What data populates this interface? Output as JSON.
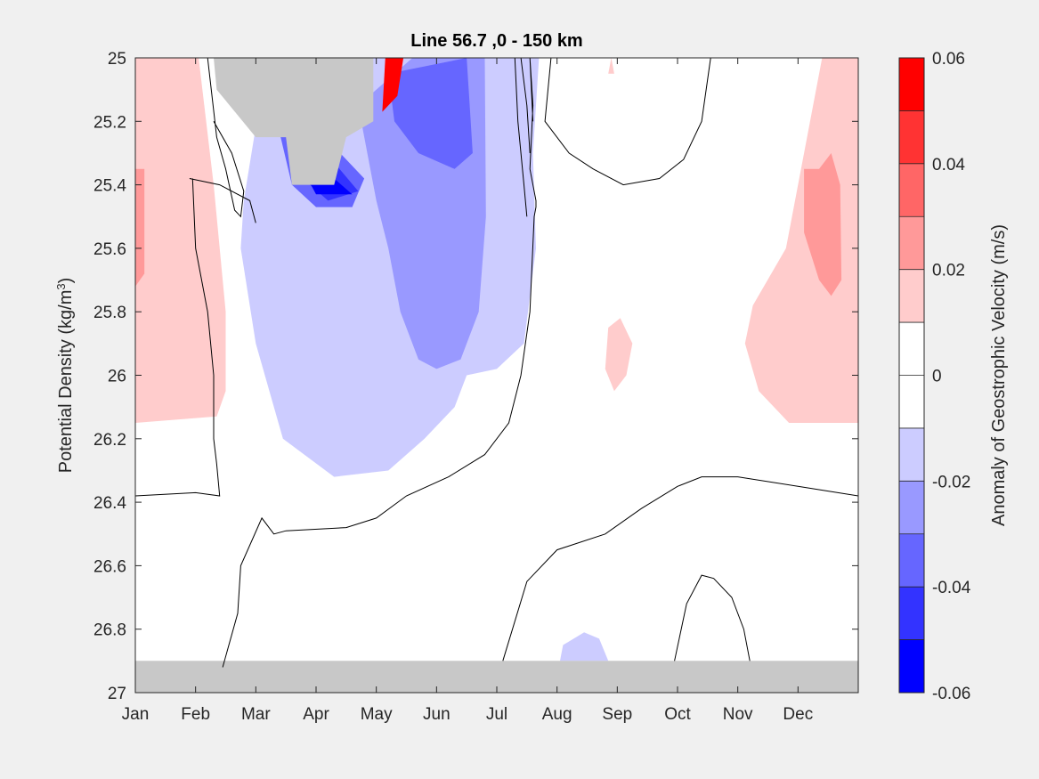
{
  "chart_data": {
    "type": "heatmap",
    "title": "Line 56.7 ,0 - 150 km",
    "xlabel": "",
    "ylabel": "Potential Density (kg/m^3)",
    "ylabel_parts": {
      "main": "Potential Density (kg/m",
      "sup": "3",
      "close": ")"
    },
    "x_ticks": [
      "Jan",
      "Feb",
      "Mar",
      "Apr",
      "May",
      "Jun",
      "Jul",
      "Aug",
      "Sep",
      "Oct",
      "Nov",
      "Dec"
    ],
    "y_ticks": [
      "25",
      "25.2",
      "25.4",
      "25.6",
      "25.8",
      "26",
      "26.2",
      "26.4",
      "26.6",
      "26.8",
      "27"
    ],
    "y_tick_values": [
      25,
      25.2,
      25.4,
      25.6,
      25.8,
      26,
      26.2,
      26.4,
      26.6,
      26.8,
      27
    ],
    "ylim": [
      25,
      27
    ],
    "xlim": [
      0,
      12
    ],
    "y_reversed": true,
    "grid": false,
    "colorbar": {
      "label": "Anomaly of Geostrophic Velocity (m/s)",
      "range": [
        -0.06,
        0.06
      ],
      "tick_labels": [
        "0.06",
        "0.04",
        "0.02",
        "0",
        "-0.02",
        "-0.04",
        "-0.06"
      ],
      "tick_values": [
        0.06,
        0.04,
        0.02,
        0,
        -0.02,
        -0.04,
        -0.06
      ],
      "levels": [
        0.06,
        0.05,
        0.04,
        0.03,
        0.02,
        0.01,
        0,
        -0.01,
        -0.02,
        -0.03,
        -0.04,
        -0.05,
        -0.06
      ],
      "colors": [
        "#ff0000",
        "#ff3333",
        "#ff6666",
        "#ff9999",
        "#ffcccc",
        "#ffffff",
        "#ffffff",
        "#ccccff",
        "#9999ff",
        "#6666ff",
        "#3333ff",
        "#0000ff"
      ]
    },
    "mask_color": "#c8c8c8",
    "anomaly_regions": [
      {
        "value": 0.015,
        "points": [
          [
            0,
            25
          ],
          [
            1.05,
            25
          ],
          [
            1.3,
            25.4
          ],
          [
            1.5,
            25.8
          ],
          [
            1.5,
            26.05
          ],
          [
            1.35,
            26.13
          ],
          [
            0,
            26.15
          ]
        ]
      },
      {
        "value": 0.025,
        "points": [
          [
            0,
            25.35
          ],
          [
            0.15,
            25.35
          ],
          [
            0.15,
            25.68
          ],
          [
            0,
            25.72
          ]
        ]
      },
      {
        "value": 0.015,
        "points": [
          [
            7.9,
            25.0
          ],
          [
            7.95,
            25.05
          ],
          [
            7.85,
            25.05
          ]
        ]
      },
      {
        "value": 0.015,
        "points": [
          [
            12,
            25
          ],
          [
            11.4,
            25
          ],
          [
            11.1,
            25.3
          ],
          [
            10.8,
            25.6
          ],
          [
            10.25,
            25.78
          ],
          [
            10.12,
            25.9
          ],
          [
            10.35,
            26.05
          ],
          [
            10.85,
            26.15
          ],
          [
            12,
            26.15
          ]
        ]
      },
      {
        "value": 0.025,
        "points": [
          [
            11.35,
            25.35
          ],
          [
            11.55,
            25.3
          ],
          [
            11.7,
            25.4
          ],
          [
            11.72,
            25.7
          ],
          [
            11.55,
            25.75
          ],
          [
            11.35,
            25.7
          ],
          [
            11.1,
            25.55
          ],
          [
            11.1,
            25.35
          ]
        ]
      },
      {
        "value": 0.015,
        "points": [
          [
            7.85,
            25.85
          ],
          [
            8.05,
            25.82
          ],
          [
            8.25,
            25.9
          ],
          [
            8.15,
            26.0
          ],
          [
            7.95,
            26.05
          ],
          [
            7.8,
            25.98
          ]
        ]
      },
      {
        "value": -0.015,
        "points": [
          [
            2.1,
            25.1
          ],
          [
            3.0,
            25.0
          ],
          [
            6.7,
            25.0
          ],
          [
            6.6,
            25.3
          ],
          [
            6.65,
            25.6
          ],
          [
            6.45,
            25.9
          ],
          [
            6.0,
            25.98
          ],
          [
            5.5,
            26.0
          ],
          [
            5.3,
            26.1
          ],
          [
            4.8,
            26.2
          ],
          [
            4.2,
            26.3
          ],
          [
            3.3,
            26.32
          ],
          [
            2.45,
            26.2
          ],
          [
            2.0,
            25.9
          ],
          [
            1.75,
            25.6
          ],
          [
            1.8,
            25.45
          ]
        ]
      },
      {
        "value": -0.025,
        "points": [
          [
            3.7,
            25.15
          ],
          [
            4.6,
            25.0
          ],
          [
            5.8,
            25.0
          ],
          [
            5.82,
            25.5
          ],
          [
            5.7,
            25.8
          ],
          [
            5.4,
            25.95
          ],
          [
            5.0,
            25.98
          ],
          [
            4.7,
            25.95
          ],
          [
            4.4,
            25.8
          ],
          [
            4.2,
            25.6
          ],
          [
            4.0,
            25.45
          ]
        ]
      },
      {
        "value": -0.035,
        "points": [
          [
            4.2,
            25.05
          ],
          [
            5.5,
            25.0
          ],
          [
            5.6,
            25.3
          ],
          [
            5.3,
            25.35
          ],
          [
            4.7,
            25.3
          ],
          [
            4.3,
            25.2
          ]
        ]
      },
      {
        "value": -0.035,
        "points": [
          [
            2.35,
            25.2
          ],
          [
            2.8,
            25.22
          ],
          [
            3.4,
            25.3
          ],
          [
            3.8,
            25.38
          ],
          [
            3.6,
            25.47
          ],
          [
            3.0,
            25.47
          ],
          [
            2.6,
            25.4
          ]
        ]
      },
      {
        "value": -0.045,
        "points": [
          [
            2.6,
            25.28
          ],
          [
            3.3,
            25.33
          ],
          [
            3.7,
            25.42
          ],
          [
            3.2,
            25.45
          ],
          [
            2.9,
            25.4
          ]
        ]
      },
      {
        "value": -0.055,
        "points": [
          [
            2.8,
            25.36
          ],
          [
            3.3,
            25.38
          ],
          [
            3.6,
            25.43
          ],
          [
            3.0,
            25.43
          ]
        ]
      },
      {
        "value": 0.05,
        "points": [
          [
            4.15,
            25.0
          ],
          [
            4.45,
            25.0
          ],
          [
            4.35,
            25.12
          ],
          [
            4.1,
            25.17
          ]
        ]
      },
      {
        "value": -0.015,
        "points": [
          [
            7.1,
            26.85
          ],
          [
            7.45,
            26.81
          ],
          [
            7.7,
            26.83
          ],
          [
            7.85,
            26.9
          ],
          [
            7.05,
            26.9
          ]
        ]
      }
    ],
    "masked_regions": [
      {
        "label": "no data",
        "points": [
          [
            1.3,
            25.0
          ],
          [
            3.95,
            25.0
          ],
          [
            3.95,
            25.2
          ],
          [
            3.5,
            25.25
          ],
          [
            3.3,
            25.4
          ],
          [
            2.6,
            25.4
          ],
          [
            2.5,
            25.25
          ],
          [
            2.0,
            25.25
          ],
          [
            1.35,
            25.1
          ]
        ]
      },
      {
        "label": "no data",
        "points": [
          [
            0,
            26.9
          ],
          [
            12,
            26.9
          ],
          [
            12,
            27.0
          ],
          [
            0,
            27.0
          ]
        ]
      }
    ],
    "zero_contours": [
      [
        [
          1.2,
          25.0
        ],
        [
          1.35,
          25.25
        ],
        [
          1.5,
          25.35
        ],
        [
          1.65,
          25.48
        ],
        [
          1.75,
          25.5
        ],
        [
          1.8,
          25.42
        ],
        [
          1.6,
          25.3
        ],
        [
          1.3,
          25.2
        ]
      ],
      [
        [
          0.9,
          25.38
        ],
        [
          1.4,
          25.4
        ],
        [
          1.9,
          25.45
        ],
        [
          2.0,
          25.52
        ]
      ],
      [
        [
          0.95,
          25.38
        ],
        [
          1.0,
          25.6
        ],
        [
          1.2,
          25.8
        ],
        [
          1.3,
          26.0
        ],
        [
          1.3,
          26.2
        ],
        [
          1.35,
          26.28
        ],
        [
          1.4,
          26.38
        ],
        [
          1.0,
          26.37
        ],
        [
          0,
          26.38
        ]
      ],
      [
        [
          1.45,
          26.92
        ],
        [
          1.7,
          26.75
        ],
        [
          1.75,
          26.6
        ],
        [
          2.1,
          26.45
        ],
        [
          2.3,
          26.5
        ],
        [
          2.5,
          26.49
        ],
        [
          3.5,
          26.48
        ],
        [
          4.0,
          26.45
        ],
        [
          4.5,
          26.38
        ],
        [
          5.2,
          26.32
        ],
        [
          5.8,
          26.25
        ],
        [
          6.2,
          26.15
        ],
        [
          6.4,
          26.0
        ],
        [
          6.55,
          25.8
        ],
        [
          6.62,
          25.5
        ],
        [
          6.65,
          25.47
        ],
        [
          6.65,
          25.45
        ],
        [
          6.55,
          25.35
        ],
        [
          6.6,
          25.15
        ],
        [
          6.55,
          25.0
        ],
        [
          6.6,
          25.2
        ]
      ],
      [
        [
          6.9,
          25.0
        ],
        [
          6.8,
          25.2
        ],
        [
          7.2,
          25.3
        ],
        [
          7.6,
          25.35
        ],
        [
          8.1,
          25.4
        ],
        [
          8.7,
          25.38
        ],
        [
          9.1,
          25.32
        ],
        [
          9.4,
          25.2
        ],
        [
          9.55,
          25.0
        ]
      ],
      [
        [
          6.4,
          25.0
        ],
        [
          6.5,
          25.15
        ],
        [
          6.55,
          25.3
        ]
      ],
      [
        [
          6.3,
          25.0
        ],
        [
          6.35,
          25.2
        ],
        [
          6.45,
          25.4
        ],
        [
          6.5,
          25.5
        ]
      ],
      [
        [
          6.1,
          26.9
        ],
        [
          6.5,
          26.65
        ],
        [
          7.0,
          26.55
        ],
        [
          7.8,
          26.5
        ],
        [
          8.4,
          26.42
        ],
        [
          9.0,
          26.35
        ],
        [
          9.4,
          26.32
        ],
        [
          10.0,
          26.32
        ],
        [
          11.0,
          26.35
        ],
        [
          12,
          26.38
        ]
      ],
      [
        [
          8.95,
          26.9
        ],
        [
          9.15,
          26.72
        ],
        [
          9.4,
          26.63
        ],
        [
          9.6,
          26.64
        ],
        [
          9.9,
          26.7
        ],
        [
          10.1,
          26.8
        ],
        [
          10.2,
          26.9
        ]
      ]
    ]
  }
}
